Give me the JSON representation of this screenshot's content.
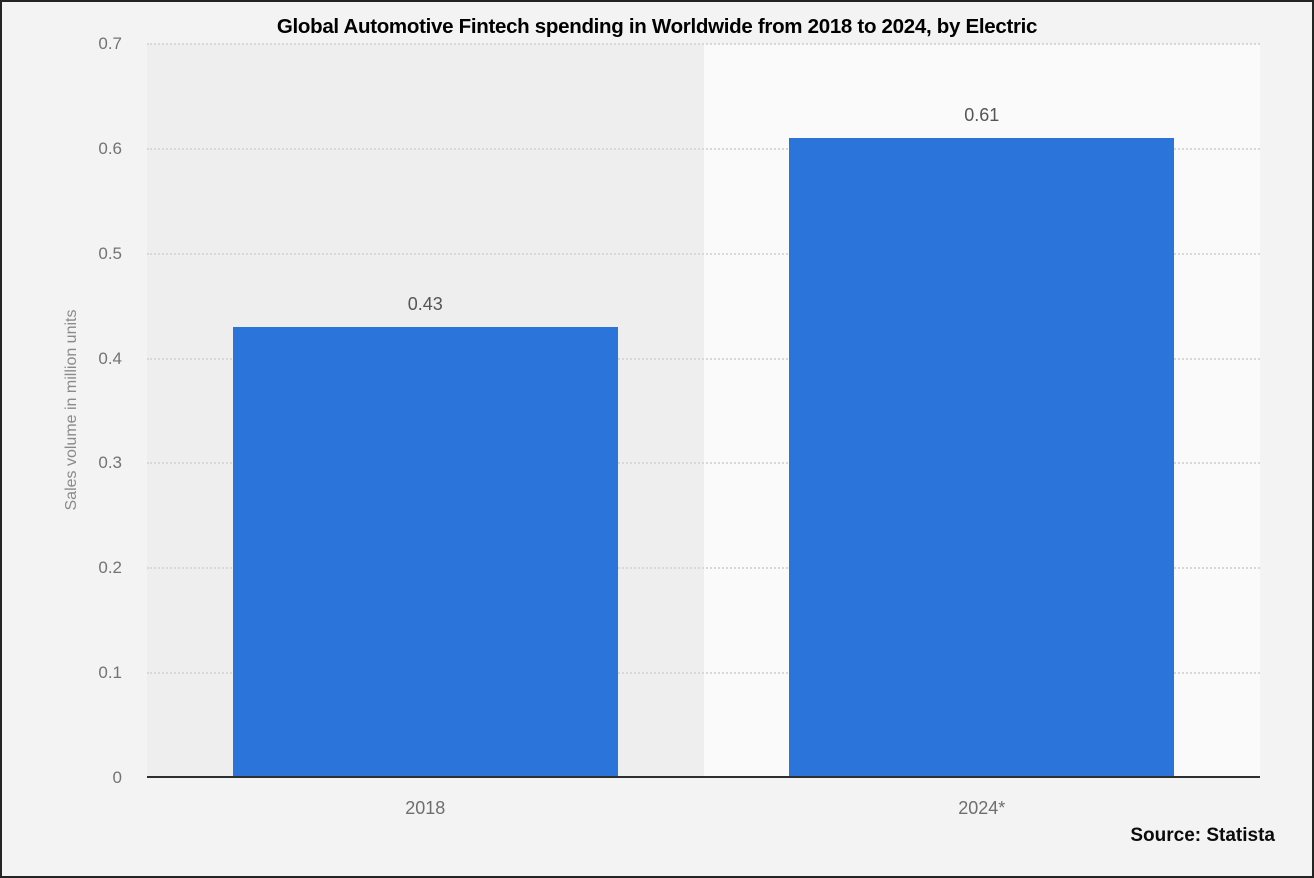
{
  "source": "Source: Statista",
  "chart_data": {
    "type": "bar",
    "title": "Global Automotive Fintech spending in Worldwide from 2018 to 2024, by Electric",
    "categories": [
      "2018",
      "2024*"
    ],
    "values": [
      0.43,
      0.61
    ],
    "value_labels": [
      "0.43",
      "0.61"
    ],
    "xlabel": "",
    "ylabel": "Sales volume in million units",
    "ylim": [
      0,
      0.7
    ],
    "ytick_labels": [
      "0",
      "0.1",
      "0.2",
      "0.3",
      "0.4",
      "0.5",
      "0.6",
      "0.7"
    ],
    "grid": "dotted-horizontal",
    "legend": "none",
    "bar_color": "#2b74da",
    "band_colors": [
      "#eeeeee",
      "#fafafa"
    ],
    "colors": {
      "canvas_background": "#f3f3f3",
      "gridline": "#d8d8d8",
      "axis_line": "#2f2f2f",
      "tick_text": "#737373",
      "value_text": "#555555",
      "title_text": "#000000",
      "frame_border": "#242424"
    }
  }
}
